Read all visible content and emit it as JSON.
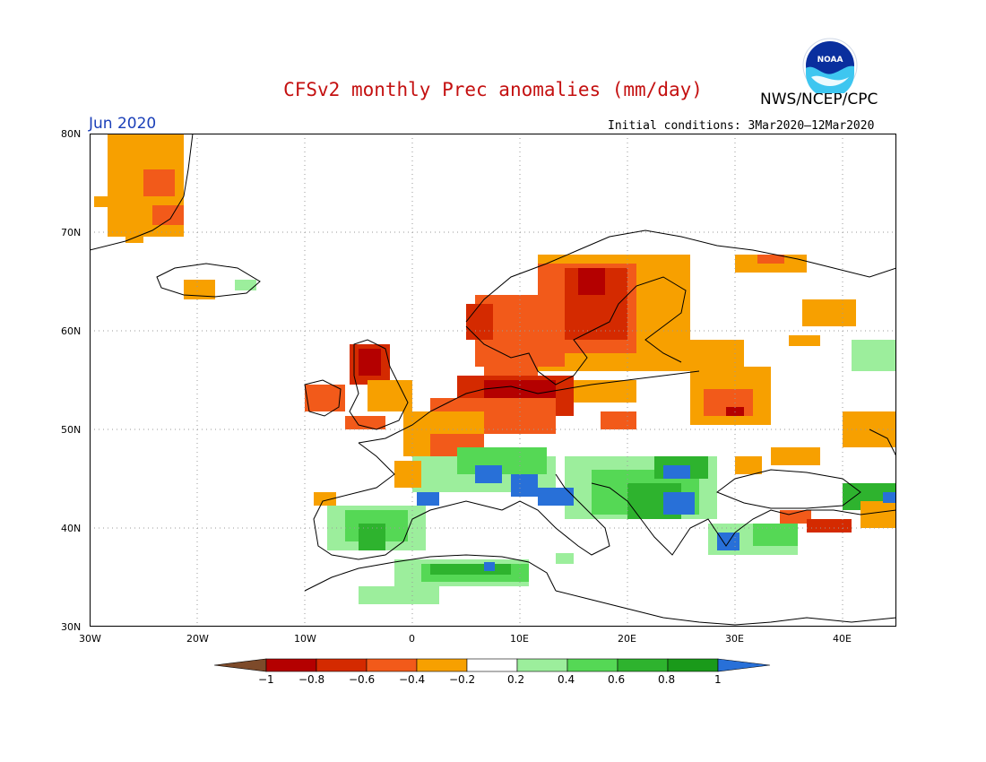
{
  "title": "CFSv2 monthly Prec anomalies (mm/day)",
  "agency": "NWS/NCEP/CPC",
  "logo_text": "NOAA",
  "month": "Jun 2020",
  "initial_conditions": "Initial conditions: 3Mar2020–12Mar2020",
  "lat_labels": [
    "80N",
    "70N",
    "60N",
    "50N",
    "40N",
    "30N"
  ],
  "lon_labels": [
    "30W",
    "20W",
    "10W",
    "0",
    "10E",
    "20E",
    "30E",
    "40E"
  ],
  "colorbar": {
    "ticks": [
      "−1",
      "−0.8",
      "−0.6",
      "−0.4",
      "−0.2",
      "0.2",
      "0.4",
      "0.6",
      "0.8",
      "1"
    ],
    "colors": [
      "#7d4a2a",
      "#b40000",
      "#d42a00",
      "#f25a1a",
      "#f7a000",
      "#ffffff",
      "#9cee9c",
      "#55d855",
      "#2eb32e",
      "#1a9a1a",
      "#2870d8"
    ]
  },
  "map_extent": {
    "lon_min": -30,
    "lon_max": 45,
    "lat_min": 30,
    "lat_max": 80
  },
  "colors": {
    "title": "#c41010",
    "month": "#1a3fb8"
  }
}
